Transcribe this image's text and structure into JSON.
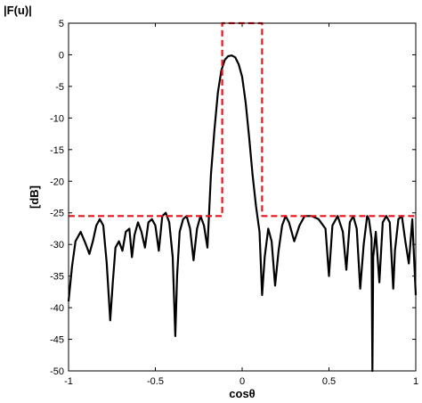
{
  "chart_data": {
    "type": "line",
    "title": "|F(u)|",
    "xlabel": "cosθ",
    "ylabel": "[dB]",
    "xlim": [
      -1,
      1
    ],
    "ylim": [
      -50,
      5
    ],
    "xticks": [
      -1,
      -0.5,
      0,
      0.5,
      1
    ],
    "xtick_labels": [
      "-1",
      "-0.5",
      "0",
      "0.5",
      "1"
    ],
    "yticks": [
      5,
      0,
      -5,
      -10,
      -15,
      -20,
      -25,
      -30,
      -35,
      -40,
      -45,
      -50
    ],
    "ytick_labels": [
      "5",
      "0",
      "-5",
      "-10",
      "-15",
      "-20",
      "-25",
      "-30",
      "-35",
      "-40",
      "-45",
      "-50"
    ],
    "grid": false,
    "colors": {
      "pattern": "#000000",
      "mask": "#e8141c"
    },
    "series": [
      {
        "style": "solid",
        "x": [
          -1.0,
          -0.98,
          -0.96,
          -0.93,
          -0.9,
          -0.88,
          -0.86,
          -0.84,
          -0.82,
          -0.8,
          -0.78,
          -0.76,
          -0.745,
          -0.73,
          -0.71,
          -0.69,
          -0.67,
          -0.65,
          -0.635,
          -0.62,
          -0.6,
          -0.58,
          -0.56,
          -0.54,
          -0.52,
          -0.5,
          -0.48,
          -0.46,
          -0.44,
          -0.42,
          -0.4,
          -0.385,
          -0.375,
          -0.36,
          -0.34,
          -0.32,
          -0.3,
          -0.28,
          -0.26,
          -0.24,
          -0.22,
          -0.2,
          -0.18,
          -0.16,
          -0.14,
          -0.12,
          -0.1,
          -0.08,
          -0.06,
          -0.04,
          -0.02,
          0.0,
          0.02,
          0.04,
          0.06,
          0.08,
          0.1,
          0.115,
          0.13,
          0.15,
          0.17,
          0.19,
          0.21,
          0.23,
          0.25,
          0.27,
          0.3,
          0.33,
          0.36,
          0.4,
          0.44,
          0.48,
          0.5,
          0.52,
          0.55,
          0.58,
          0.6,
          0.62,
          0.64,
          0.66,
          0.68,
          0.7,
          0.72,
          0.73,
          0.745,
          0.75,
          0.755,
          0.77,
          0.79,
          0.81,
          0.83,
          0.85,
          0.87,
          0.88,
          0.9,
          0.92,
          0.94,
          0.96,
          0.98,
          1.0
        ],
        "y": [
          -39,
          -33.5,
          -29.5,
          -28,
          -30,
          -31.5,
          -29.5,
          -27,
          -26,
          -27,
          -33,
          -42,
          -36,
          -30.5,
          -29.5,
          -31,
          -28,
          -27.5,
          -32,
          -28.5,
          -26.5,
          -28,
          -30.5,
          -26.5,
          -26,
          -27,
          -31,
          -25.5,
          -25,
          -26.5,
          -32,
          -44.5,
          -35,
          -28,
          -26,
          -25.5,
          -27.5,
          -32.5,
          -27.5,
          -25.5,
          -27,
          -30.5,
          -19,
          -12,
          -6,
          -2.5,
          -0.8,
          -0.2,
          -0.1,
          -0.4,
          -1.5,
          -3.5,
          -7.5,
          -13,
          -19,
          -24,
          -28,
          -38,
          -32,
          -27.5,
          -29.5,
          -36.5,
          -31,
          -27,
          -25.5,
          -26.5,
          -29.5,
          -27,
          -25.5,
          -25.5,
          -26,
          -27.5,
          -35,
          -27,
          -25.5,
          -28,
          -34,
          -26.5,
          -25.5,
          -27.5,
          -37,
          -30,
          -25.5,
          -26,
          -29,
          -50,
          -32,
          -28,
          -36,
          -26.5,
          -25.5,
          -26.5,
          -37,
          -31,
          -26,
          -25.5,
          -29.5,
          -33,
          -26,
          -38
        ]
      },
      {
        "style": "dashed",
        "x": [
          -1.0,
          -0.115,
          -0.115,
          0.115,
          0.115,
          1.0
        ],
        "y": [
          -25.5,
          -25.5,
          5,
          5,
          -25.5,
          -25.5
        ]
      }
    ]
  }
}
